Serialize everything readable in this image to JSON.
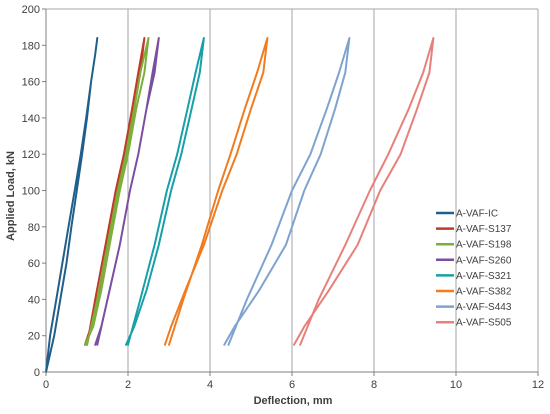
{
  "chart_data": {
    "type": "line",
    "title": "",
    "xlabel": "Deflection, mm",
    "ylabel": "Applied Load, kN",
    "xlim": [
      0,
      12
    ],
    "ylim": [
      0,
      200
    ],
    "xticks": [
      0,
      2,
      4,
      6,
      8,
      10,
      12
    ],
    "yticks": [
      0,
      20,
      40,
      60,
      80,
      100,
      120,
      140,
      160,
      180,
      200
    ],
    "grid": "vertical",
    "legend_position": "right",
    "series": [
      {
        "name": "A-VAF-IC",
        "color": "#1f5f8b",
        "x": [
          0.0,
          0.2,
          0.35,
          0.5,
          0.62,
          0.75,
          0.88,
          1.0,
          1.1,
          1.2,
          1.25,
          1.2,
          1.1,
          0.98,
          0.85,
          0.7,
          0.55,
          0.4,
          0.25,
          0.1,
          0.0
        ],
        "y": [
          0,
          20,
          40,
          60,
          80,
          100,
          120,
          140,
          160,
          175,
          184,
          175,
          160,
          140,
          120,
          100,
          80,
          60,
          40,
          20,
          0
        ]
      },
      {
        "name": "A-VAF-S137",
        "color": "#c0392b",
        "x": [
          1.0,
          1.2,
          1.45,
          1.7,
          1.9,
          2.1,
          2.25,
          2.4,
          2.3,
          2.15,
          1.95,
          1.75,
          1.5,
          1.3,
          1.1,
          0.95
        ],
        "y": [
          15,
          40,
          70,
          100,
          120,
          145,
          165,
          184,
          165,
          145,
          120,
          100,
          70,
          45,
          25,
          15
        ]
      },
      {
        "name": "A-VAF-S198",
        "color": "#7cae3a",
        "x": [
          1.0,
          1.25,
          1.5,
          1.75,
          1.95,
          2.15,
          2.3,
          2.5,
          2.4,
          2.2,
          2.0,
          1.8,
          1.55,
          1.35,
          1.15,
          0.95
        ],
        "y": [
          15,
          40,
          70,
          100,
          120,
          145,
          165,
          184,
          165,
          145,
          120,
          100,
          70,
          45,
          25,
          15
        ]
      },
      {
        "name": "A-VAF-S260",
        "color": "#7b4fa0",
        "x": [
          1.25,
          1.5,
          1.8,
          2.05,
          2.25,
          2.45,
          2.6,
          2.75,
          2.65,
          2.45,
          2.25,
          2.05,
          1.8,
          1.55,
          1.35,
          1.2
        ],
        "y": [
          15,
          40,
          70,
          100,
          120,
          145,
          165,
          184,
          165,
          145,
          120,
          100,
          70,
          45,
          25,
          15
        ]
      },
      {
        "name": "A-VAF-S321",
        "color": "#17a0a8",
        "x": [
          2.0,
          2.3,
          2.65,
          2.95,
          3.2,
          3.45,
          3.65,
          3.85,
          3.75,
          3.55,
          3.3,
          3.05,
          2.75,
          2.45,
          2.15,
          1.95
        ],
        "y": [
          15,
          40,
          70,
          100,
          120,
          145,
          165,
          184,
          165,
          145,
          120,
          100,
          70,
          45,
          25,
          15
        ]
      },
      {
        "name": "A-VAF-S382",
        "color": "#f07c1f",
        "x": [
          3.0,
          3.35,
          3.8,
          4.2,
          4.5,
          4.85,
          5.15,
          5.4,
          5.3,
          5.0,
          4.65,
          4.3,
          3.85,
          3.4,
          3.05,
          2.9
        ],
        "y": [
          15,
          40,
          70,
          100,
          120,
          145,
          165,
          184,
          165,
          145,
          120,
          100,
          70,
          45,
          25,
          15
        ]
      },
      {
        "name": "A-VAF-S443",
        "color": "#7fa3cf",
        "x": [
          4.45,
          4.9,
          5.5,
          6.0,
          6.45,
          6.85,
          7.15,
          7.4,
          7.3,
          7.05,
          6.7,
          6.3,
          5.85,
          5.2,
          4.6,
          4.35
        ],
        "y": [
          15,
          40,
          70,
          100,
          120,
          145,
          165,
          184,
          165,
          145,
          120,
          100,
          70,
          45,
          25,
          15
        ]
      },
      {
        "name": "A-VAF-S505",
        "color": "#e8807a",
        "x": [
          6.2,
          6.65,
          7.3,
          7.9,
          8.35,
          8.85,
          9.2,
          9.45,
          9.35,
          9.05,
          8.65,
          8.15,
          7.6,
          6.9,
          6.3,
          6.05
        ],
        "y": [
          15,
          40,
          70,
          100,
          120,
          145,
          165,
          184,
          165,
          145,
          120,
          100,
          70,
          45,
          25,
          15
        ]
      }
    ]
  }
}
